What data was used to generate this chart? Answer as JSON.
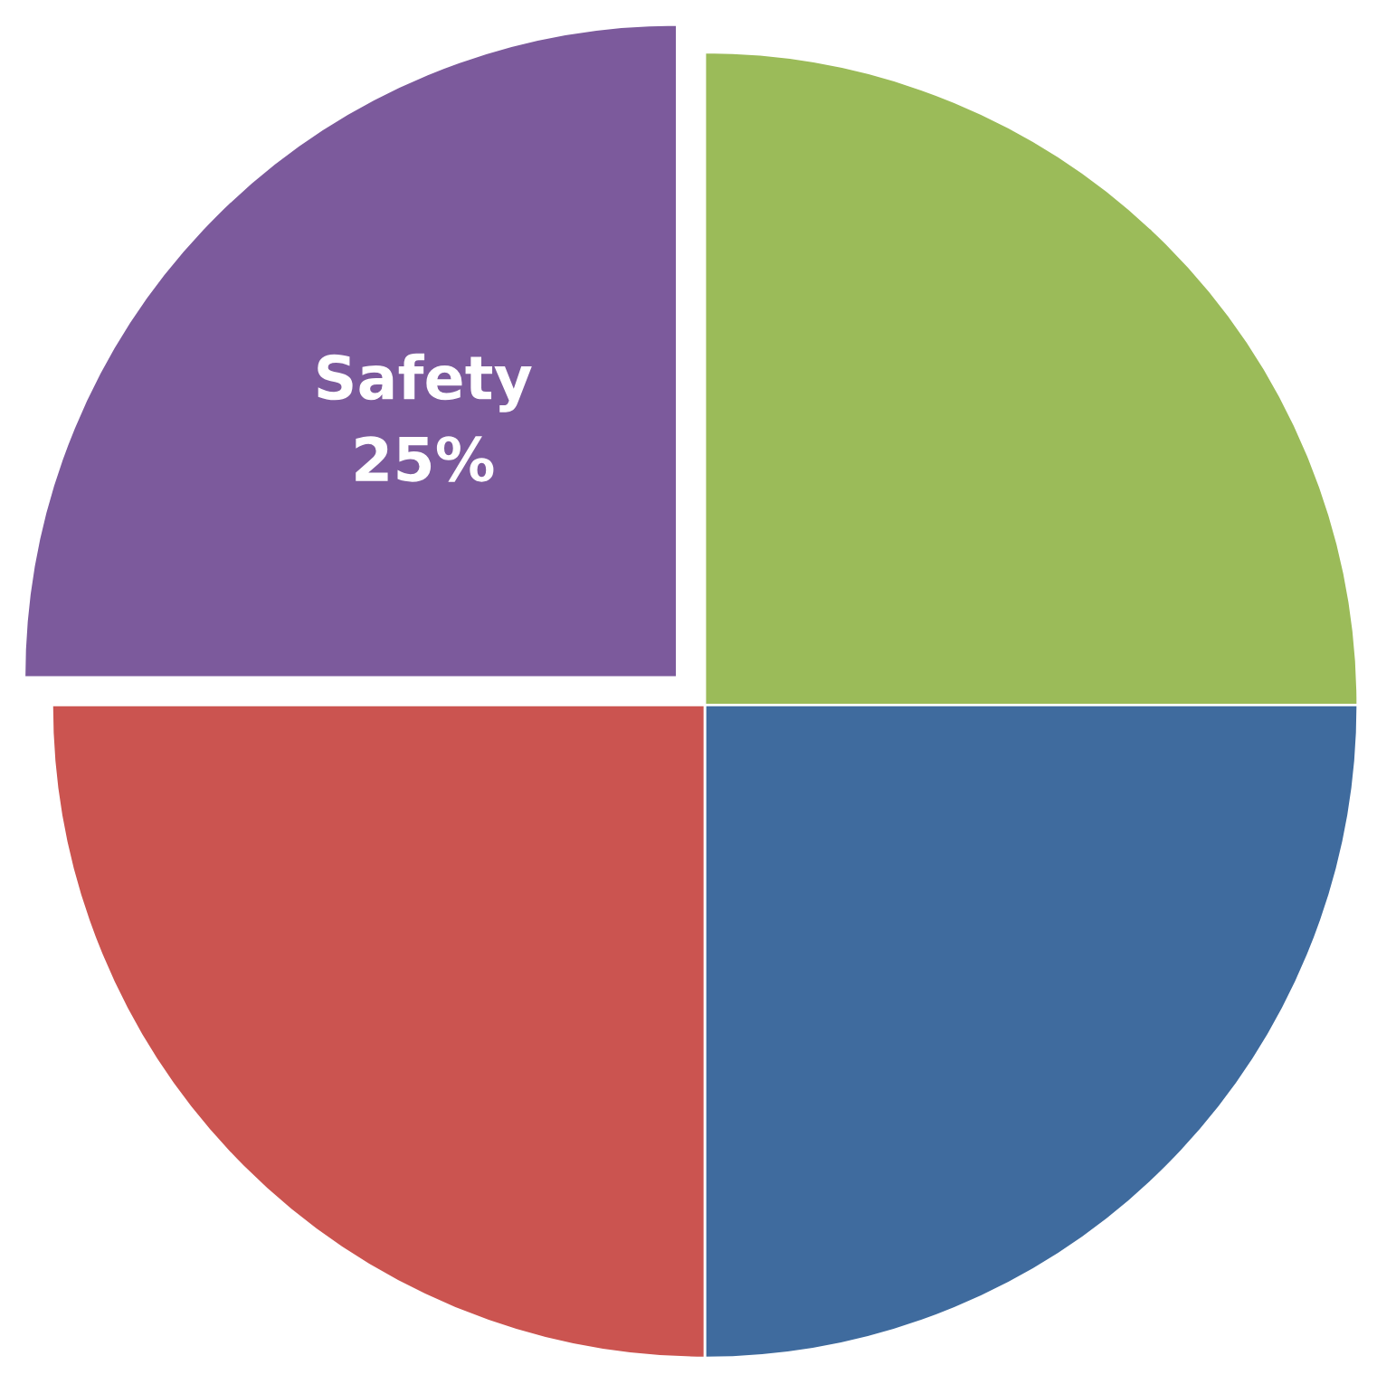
{
  "chart_data": {
    "type": "pie",
    "categories": [
      null,
      null,
      null,
      "Safety"
    ],
    "values": [
      25,
      25,
      25,
      25
    ],
    "value_labels": [
      null,
      null,
      null,
      "25%"
    ],
    "colors": [
      "#9bbb59",
      "#3f6b9e",
      "#cb5450",
      "#7c5a9c"
    ]
  }
}
